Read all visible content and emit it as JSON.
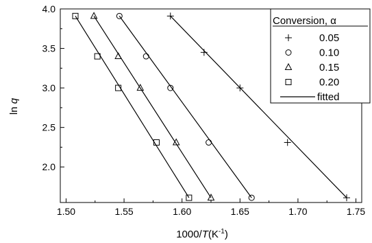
{
  "chart_data": {
    "type": "scatter",
    "xlabel": {
      "prefix": "1000/",
      "var": "T",
      "unit": "(K",
      "exp": "-1",
      "close": ")"
    },
    "ylabel": {
      "prefix": "ln ",
      "var": "q"
    },
    "xlim": [
      1.495,
      1.755
    ],
    "ylim": [
      1.55,
      4.0
    ],
    "xticks": [
      1.5,
      1.55,
      1.6,
      1.65,
      1.7,
      1.75
    ],
    "xtick_labels": [
      "1.50",
      "1.55",
      "1.60",
      "1.65",
      "1.70",
      "1.75"
    ],
    "yticks": [
      2.0,
      2.5,
      3.0,
      3.5,
      4.0
    ],
    "ytick_labels": [
      "2.0",
      "2.5",
      "3.0",
      "3.5",
      "4.0"
    ],
    "legend": {
      "title": "Conversion, α",
      "position": "top-right",
      "fitted_label": "fitted"
    },
    "series": [
      {
        "name": "0.05",
        "marker": "plus",
        "x": [
          1.59,
          1.619,
          1.65,
          1.691,
          1.742
        ],
        "y": [
          3.91,
          3.45,
          3.0,
          2.31,
          1.61
        ],
        "fit": [
          [
            1.59,
            3.91
          ],
          [
            1.742,
            1.61
          ]
        ]
      },
      {
        "name": "0.10",
        "marker": "circle",
        "x": [
          1.546,
          1.569,
          1.59,
          1.623,
          1.66
        ],
        "y": [
          3.91,
          3.4,
          3.0,
          2.31,
          1.61
        ],
        "fit": [
          [
            1.546,
            3.91
          ],
          [
            1.66,
            1.61
          ]
        ]
      },
      {
        "name": "0.15",
        "marker": "triangle",
        "x": [
          1.524,
          1.545,
          1.564,
          1.595,
          1.625
        ],
        "y": [
          3.91,
          3.4,
          3.0,
          2.31,
          1.61
        ],
        "fit": [
          [
            1.524,
            3.91
          ],
          [
            1.625,
            1.61
          ]
        ]
      },
      {
        "name": "0.20",
        "marker": "square",
        "x": [
          1.508,
          1.527,
          1.545,
          1.578,
          1.606
        ],
        "y": [
          3.91,
          3.4,
          3.0,
          2.31,
          1.61
        ],
        "fit": [
          [
            1.508,
            3.91
          ],
          [
            1.606,
            1.61
          ]
        ]
      }
    ]
  }
}
